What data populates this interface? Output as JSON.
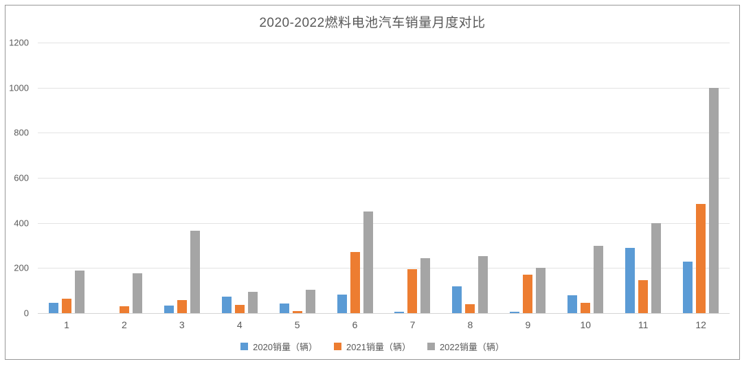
{
  "title": "2020-2022燃料电池汽车销量月度对比",
  "colors": {
    "series_2020": "#5B9BD5",
    "series_2021": "#ED7D31",
    "series_2022": "#A5A5A5",
    "text": "#595959",
    "gridline": "#E3E3E3",
    "frame_border": "#969696"
  },
  "chart_data": {
    "type": "bar",
    "title": "2020-2022燃料电池汽车销量月度对比",
    "categories": [
      "1",
      "2",
      "3",
      "4",
      "5",
      "6",
      "7",
      "8",
      "9",
      "10",
      "11",
      "12"
    ],
    "series": [
      {
        "name": "2020销量（辆）",
        "color": "#5B9BD5",
        "values": [
          45,
          0,
          35,
          72,
          42,
          82,
          6,
          120,
          6,
          80,
          288,
          228
        ]
      },
      {
        "name": "2021销量（辆）",
        "color": "#ED7D31",
        "values": [
          65,
          30,
          58,
          38,
          10,
          270,
          195,
          39,
          172,
          47,
          145,
          485
        ]
      },
      {
        "name": "2022销量（辆）",
        "color": "#A5A5A5",
        "values": [
          190,
          178,
          365,
          93,
          103,
          452,
          245,
          253,
          200,
          300,
          400,
          1000
        ]
      }
    ],
    "xlabel": "",
    "ylabel": "",
    "ylim": [
      0,
      1200
    ],
    "yticks": [
      0,
      200,
      400,
      600,
      800,
      1000,
      1200
    ],
    "grid": "horizontal",
    "legend_position": "bottom"
  }
}
